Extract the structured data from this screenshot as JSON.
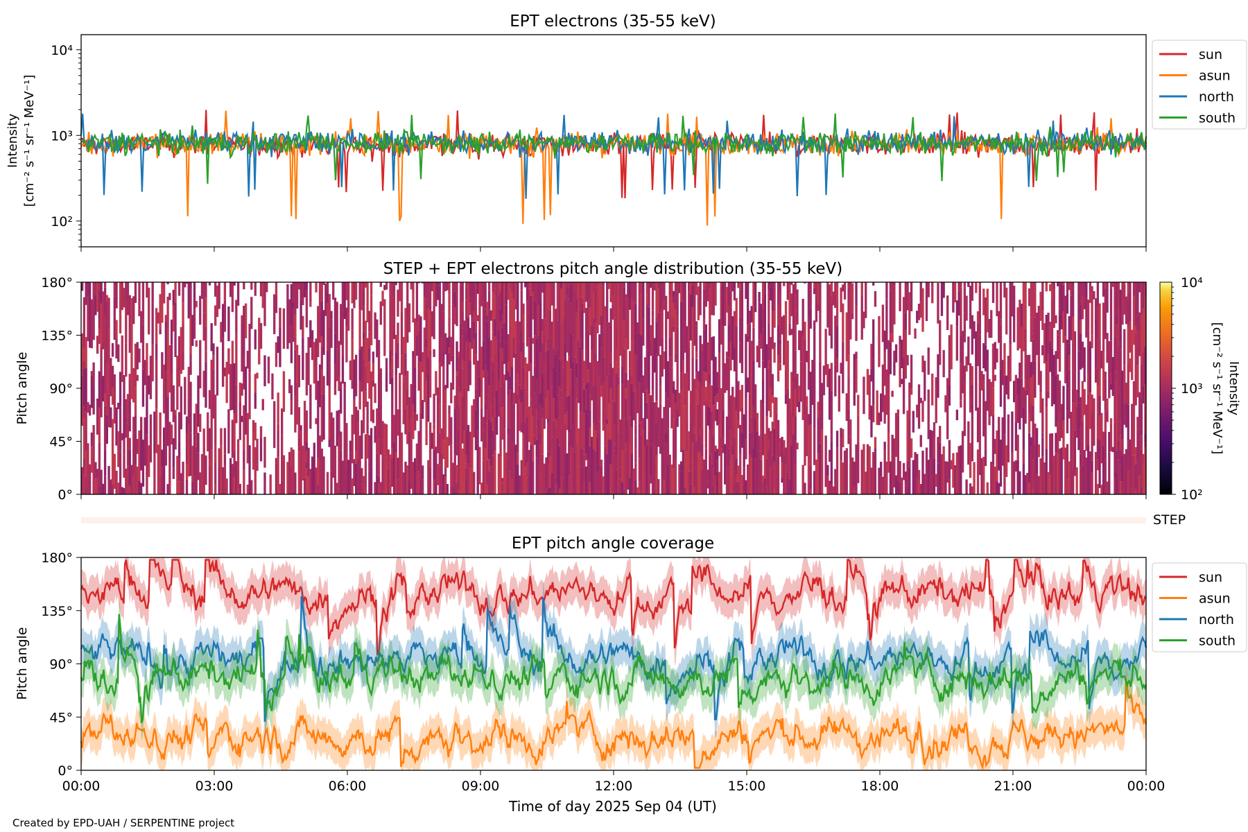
{
  "footer": "Created by EPD-UAH / SERPENTINE project",
  "colors": {
    "sun": "#d62728",
    "asun": "#ff7f0e",
    "north": "#1f77b4",
    "south": "#2ca02c"
  },
  "chart_data": [
    {
      "type": "line",
      "title": "EPT electrons (35-55 keV)",
      "ylabel_line1": "Intensity",
      "ylabel_line2": "[cm⁻² s⁻¹ sr⁻¹ MeV⁻¹]",
      "yscale": "log",
      "ylim": [
        50,
        15000
      ],
      "yticks": [
        {
          "value": 100,
          "label": "10²"
        },
        {
          "value": 1000,
          "label": "10³"
        },
        {
          "value": 10000,
          "label": "10⁴"
        }
      ],
      "xlim_hours": [
        0,
        24
      ],
      "legend_position": "upper-right-outside",
      "series": [
        {
          "name": "sun",
          "typical": 780,
          "min": 180,
          "max": 2050
        },
        {
          "name": "asun",
          "typical": 800,
          "min": 85,
          "max": 1950
        },
        {
          "name": "north",
          "typical": 830,
          "min": 180,
          "max": 1800
        },
        {
          "name": "south",
          "typical": 820,
          "min": 270,
          "max": 1850
        }
      ]
    },
    {
      "type": "heatmap",
      "title": "STEP + EPT electrons pitch angle distribution (35-55 keV)",
      "ylabel": "Pitch angle",
      "ylim": [
        0,
        180
      ],
      "yticks": [
        {
          "value": 0,
          "label": "0°"
        },
        {
          "value": 45,
          "label": "45°"
        },
        {
          "value": 90,
          "label": "90°"
        },
        {
          "value": 135,
          "label": "135°"
        },
        {
          "value": 180,
          "label": "180°"
        }
      ],
      "colorbar": {
        "scale": "log",
        "range": [
          100,
          10000
        ],
        "ticks": [
          {
            "value": 100,
            "label": "10²"
          },
          {
            "value": 1000,
            "label": "10³"
          },
          {
            "value": 10000,
            "label": "10⁴"
          }
        ],
        "label_line1": "Intensity",
        "label_line2": "[cm⁻² s⁻¹ sr⁻¹ MeV⁻¹]",
        "colormap": "inferno"
      },
      "typical_intensity": 800
    },
    {
      "type": "strip",
      "label": "STEP",
      "color": "#fdf0ea"
    },
    {
      "type": "line",
      "title": "EPT pitch angle coverage",
      "ylabel": "Pitch angle",
      "xlabel": "Time of day 2025 Sep 04 (UT)",
      "ylim": [
        0,
        180
      ],
      "yticks": [
        {
          "value": 0,
          "label": "0°"
        },
        {
          "value": 45,
          "label": "45°"
        },
        {
          "value": 90,
          "label": "90°"
        },
        {
          "value": 135,
          "label": "135°"
        },
        {
          "value": 180,
          "label": "180°"
        }
      ],
      "xticks": [
        "00:00",
        "03:00",
        "06:00",
        "09:00",
        "12:00",
        "15:00",
        "18:00",
        "21:00",
        "00:00"
      ],
      "xtick_hours": [
        0,
        3,
        6,
        9,
        12,
        15,
        18,
        21,
        24
      ],
      "legend_position": "upper-right-outside",
      "series": [
        {
          "name": "sun",
          "typical_deg": 150,
          "band_deg": 15
        },
        {
          "name": "asun",
          "typical_deg": 30,
          "band_deg": 15
        },
        {
          "name": "north",
          "typical_deg": 95,
          "band_deg": 15
        },
        {
          "name": "south",
          "typical_deg": 80,
          "band_deg": 15
        }
      ]
    }
  ]
}
